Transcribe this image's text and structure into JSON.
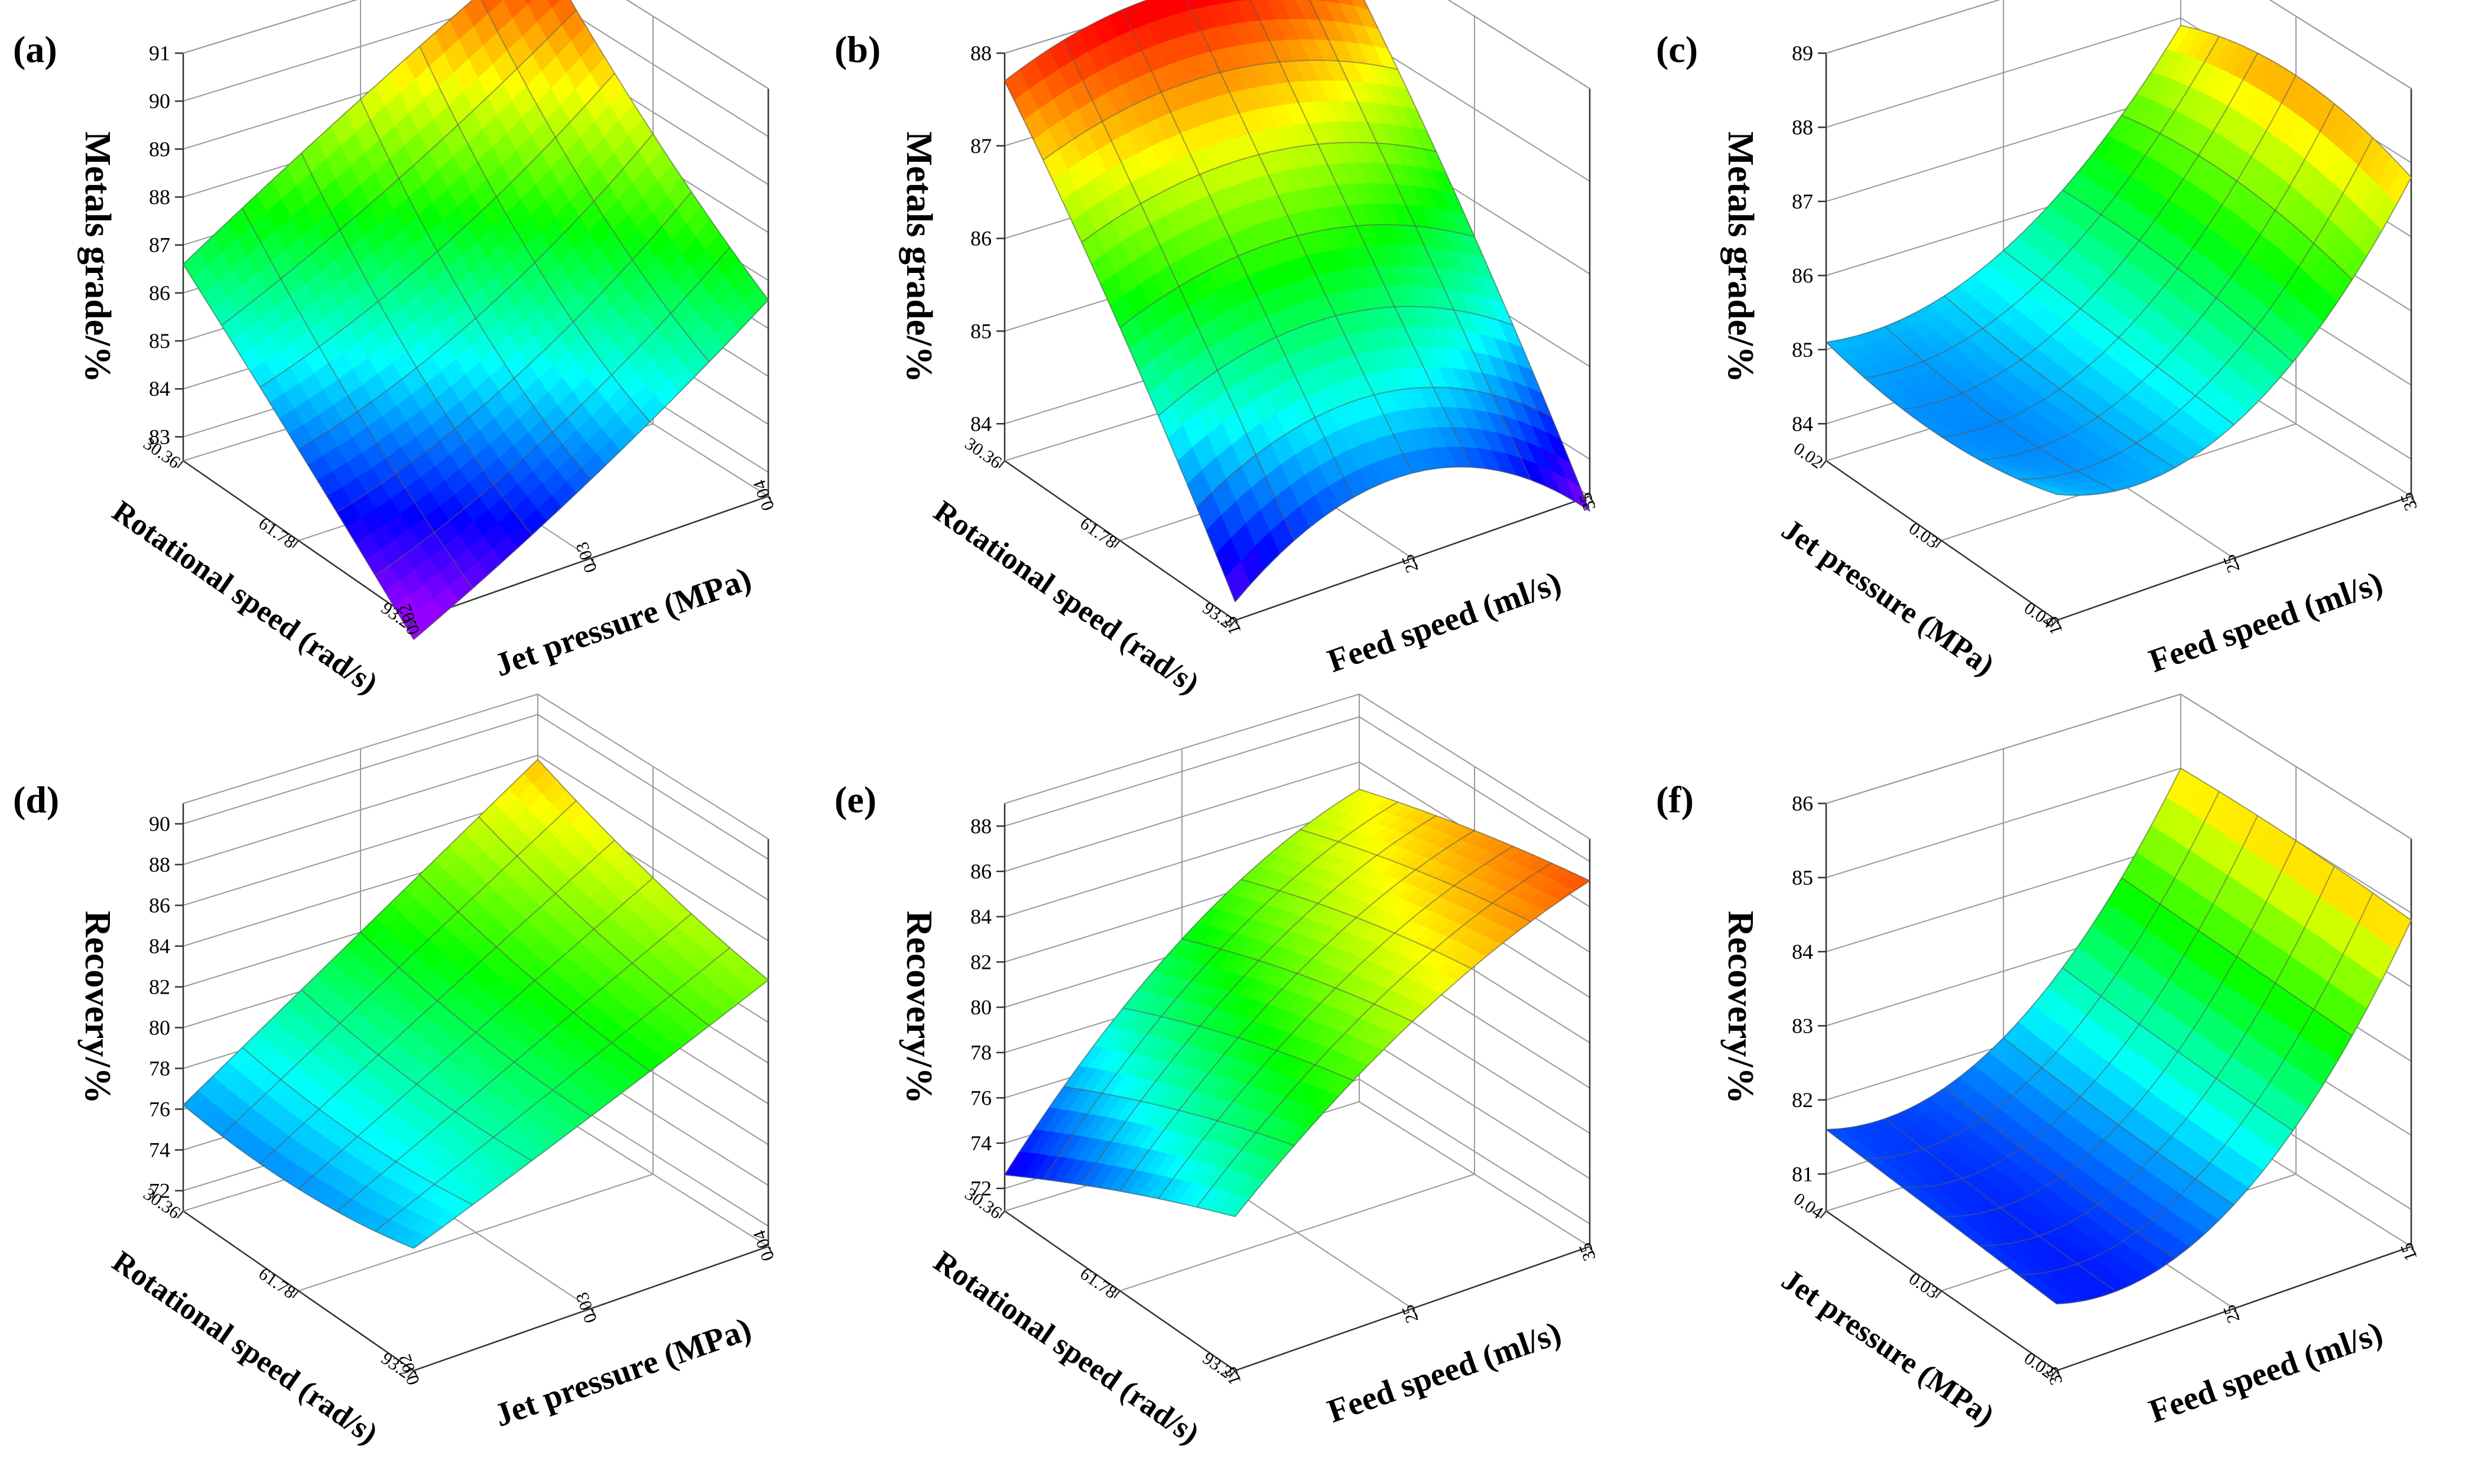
{
  "figure": {
    "panels": [
      "a",
      "b",
      "c",
      "d",
      "e",
      "f"
    ]
  },
  "chart_data": [
    {
      "panel": "a",
      "label": "(a)",
      "type": "surface",
      "zlabel": "Metals grade/%",
      "zticks": [
        "83",
        "84",
        "85",
        "86",
        "87",
        "88",
        "89",
        "90",
        "91"
      ],
      "zlim": [
        82.5,
        91
      ],
      "xlabel": "Rotational speed (rad/s)",
      "xticks": [
        "30.36",
        "61.78",
        "93.2"
      ],
      "ylabel": "Jet pressure (MPa)",
      "yticks": [
        "0.02",
        "0.03",
        "0.04"
      ],
      "corners": {
        "back": 91,
        "left": 86.6,
        "right": 86.9,
        "front": 82.1
      },
      "grid": [
        [
          86.6,
          88.9,
          91.0
        ],
        [
          84.4,
          86.0,
          88.7
        ],
        [
          82.1,
          84.3,
          86.9
        ]
      ]
    },
    {
      "panel": "b",
      "label": "(b)",
      "type": "surface",
      "zlabel": "Metals grade/%",
      "zticks": [
        "84",
        "85",
        "86",
        "87",
        "88"
      ],
      "zlim": [
        83.6,
        88
      ],
      "xlabel": "Rotational speed (rad/s)",
      "xticks": [
        "30.36",
        "61.78",
        "93.2"
      ],
      "ylabel": "Feed speed (ml/s)",
      "yticks": [
        "15",
        "25",
        "35"
      ],
      "corners": {
        "back": 87.5,
        "left": 87.7,
        "right": 83.6,
        "front": 83.8
      },
      "grid": [
        [
          87.7,
          88.1,
          87.5
        ],
        [
          85.9,
          86.3,
          85.7
        ],
        [
          83.8,
          84.6,
          83.6
        ]
      ]
    },
    {
      "panel": "c",
      "label": "(c)",
      "type": "surface",
      "zlabel": "Metals grade/%",
      "zticks": [
        "84",
        "85",
        "86",
        "87",
        "88",
        "89"
      ],
      "zlim": [
        83.5,
        89
      ],
      "xlabel": "Jet pressure (MPa)",
      "xticks": [
        "0.02",
        "0.03",
        "0.04"
      ],
      "ylabel": "Feed speed (ml/s)",
      "yticks": [
        "15",
        "25",
        "35"
      ],
      "corners": {
        "back": 87.9,
        "left": 85.1,
        "right": 88.0,
        "front": 85.2
      },
      "grid": [
        [
          85.1,
          85.6,
          87.9
        ],
        [
          84.9,
          85.5,
          88.3
        ],
        [
          85.2,
          85.4,
          88.0
        ]
      ]
    },
    {
      "panel": "d",
      "label": "(d)",
      "type": "surface",
      "zlabel": "Recovery/%",
      "zticks": [
        "72",
        "74",
        "76",
        "78",
        "80",
        "82",
        "84",
        "86",
        "88",
        "90"
      ],
      "zlim": [
        71,
        91
      ],
      "xlabel": "Rotational speed (rad/s)",
      "xticks": [
        "30.36",
        "61.78",
        "93.2"
      ],
      "ylabel": "Jet pressure (MPa)",
      "yticks": [
        "0.02",
        "0.03",
        "0.04"
      ],
      "corners": {
        "back": 87.8,
        "left": 76.2,
        "right": 84.8,
        "front": 77.0
      },
      "grid": [
        [
          76.2,
          82.0,
          87.8
        ],
        [
          76.0,
          81.0,
          85.9
        ],
        [
          77.0,
          80.8,
          84.8
        ]
      ]
    },
    {
      "panel": "e",
      "label": "(e)",
      "type": "surface",
      "zlabel": "Recovery/%",
      "zticks": [
        "72",
        "74",
        "76",
        "78",
        "80",
        "82",
        "84",
        "86",
        "88"
      ],
      "zlim": [
        71,
        89
      ],
      "xlabel": "Rotational speed (rad/s)",
      "xticks": [
        "30.36",
        "61.78",
        "93.2"
      ],
      "ylabel": "Feed speed (ml/s)",
      "yticks": [
        "15",
        "25",
        "35"
      ],
      "corners": {
        "back": 84.8,
        "left": 72.6,
        "right": 87.8,
        "front": 77.8
      },
      "grid": [
        [
          72.6,
          80.6,
          84.8
        ],
        [
          75.4,
          82.6,
          86.5
        ],
        [
          77.8,
          84.0,
          87.8
        ]
      ]
    },
    {
      "panel": "f",
      "label": "(f)",
      "type": "surface",
      "zlabel": "Recovery/%",
      "zticks": [
        "81",
        "82",
        "83",
        "84",
        "85",
        "86"
      ],
      "zlim": [
        80.5,
        86
      ],
      "xlabel": "Jet pressure (MPa)",
      "xticks": [
        "0.04",
        "0.03",
        "0.02"
      ],
      "ylabel": "Feed speed (ml/s)",
      "yticks": [
        "35",
        "25",
        "15"
      ],
      "corners": {
        "back": 85.0,
        "left": 81.6,
        "right": 85.1,
        "front": 81.4
      },
      "grid": [
        [
          81.6,
          82.1,
          85.0
        ],
        [
          81.5,
          82.0,
          85.1
        ],
        [
          81.4,
          82.0,
          85.1
        ]
      ]
    }
  ]
}
